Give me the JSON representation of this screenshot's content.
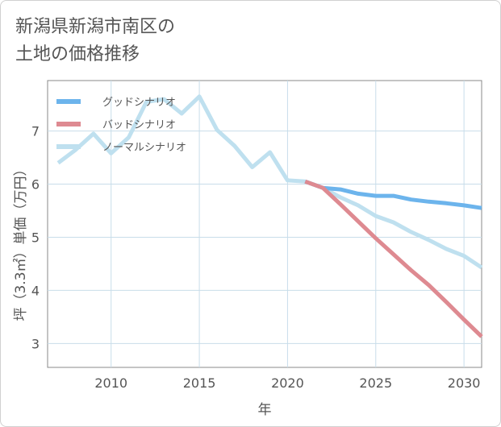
{
  "title_lines": [
    "新潟県新潟市南区の",
    "土地の価格推移"
  ],
  "chart_data": {
    "type": "line",
    "xlabel": "年",
    "ylabel": "坪（3.3㎡）単価（万円）",
    "xlim": [
      2006.4,
      2031
    ],
    "ylim": [
      2.55,
      7.95
    ],
    "xticks": [
      2010,
      2015,
      2020,
      2025,
      2030
    ],
    "yticks": [
      3,
      4,
      5,
      6,
      7
    ],
    "legend_position": "top-left",
    "series": [
      {
        "name": "グッドシナリオ",
        "color": "#6cb4ec",
        "width": 5,
        "x": [
          2021,
          2022,
          2023,
          2024,
          2025,
          2026,
          2027,
          2028,
          2029,
          2030,
          2031
        ],
        "values": [
          6.05,
          5.93,
          5.9,
          5.82,
          5.78,
          5.78,
          5.71,
          5.67,
          5.64,
          5.6,
          5.55
        ]
      },
      {
        "name": "バッドシナリオ",
        "color": "#de8a91",
        "width": 5,
        "x": [
          2021,
          2022,
          2023,
          2024,
          2025,
          2026,
          2027,
          2028,
          2029,
          2030,
          2031
        ],
        "values": [
          6.05,
          5.93,
          5.62,
          5.3,
          4.98,
          4.68,
          4.38,
          4.1,
          3.78,
          3.45,
          3.13
        ]
      },
      {
        "name": "ノーマルシナリオ",
        "color": "#bfe0ef",
        "width": 5,
        "x": [
          2007,
          2008,
          2009,
          2010,
          2011,
          2012,
          2013,
          2014,
          2015,
          2016,
          2017,
          2018,
          2019,
          2020,
          2021,
          2022,
          2023,
          2024,
          2025,
          2026,
          2027,
          2028,
          2029,
          2030,
          2031
        ],
        "values": [
          6.4,
          6.65,
          6.95,
          6.58,
          6.88,
          7.55,
          7.6,
          7.33,
          7.65,
          7.02,
          6.72,
          6.32,
          6.6,
          6.07,
          6.05,
          5.93,
          5.75,
          5.6,
          5.4,
          5.28,
          5.1,
          4.95,
          4.78,
          4.65,
          4.43
        ]
      }
    ]
  }
}
